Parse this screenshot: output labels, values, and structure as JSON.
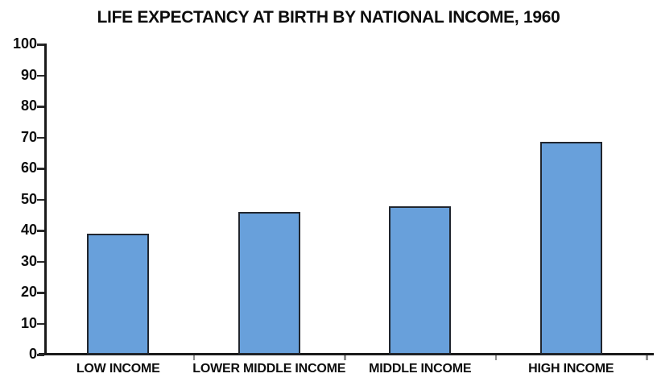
{
  "chart_data": {
    "type": "bar",
    "title": "LIFE EXPECTANCY AT BIRTH BY NATIONAL INCOME, 1960",
    "categories": [
      "LOW INCOME",
      "LOWER MIDDLE INCOME",
      "MIDDLE INCOME",
      "HIGH INCOME"
    ],
    "values": [
      39,
      45.9,
      47.7,
      68.7
    ],
    "xlabel": "",
    "ylabel": "",
    "ylim": [
      0,
      100
    ],
    "ytick_step": 10,
    "yticks": [
      0,
      10,
      20,
      30,
      40,
      50,
      60,
      70,
      80,
      90,
      100
    ],
    "grid": false,
    "legend": false,
    "bar_color": "#68a0db",
    "bar_border_color": "#21262e",
    "axis_color": "#1a1a1a",
    "tick_color": "#8f8f8f",
    "text_color": "#0d0d0d",
    "background_color": "#ffffff"
  }
}
